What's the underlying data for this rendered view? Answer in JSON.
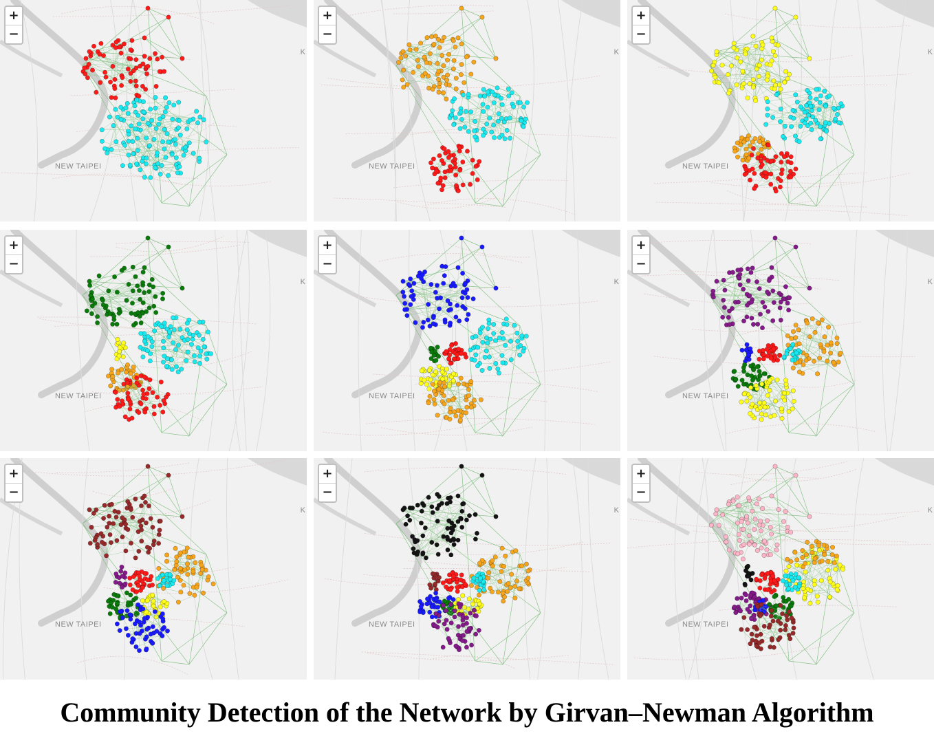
{
  "caption": "Community Detection of the Network by Girvan–Newman Algorithm",
  "zoom_controls": {
    "zoom_in": "+",
    "zoom_out": "−"
  },
  "map_labels": {
    "city": "NEW TAIPEI",
    "edge_letter": "K"
  },
  "colors": {
    "red": "#ff1a1a",
    "cyan": "#19eaf0",
    "orange": "#f7a51a",
    "yellow": "#ffff1a",
    "green": "#0a7a0a",
    "blue": "#1a1aff",
    "purple": "#851a8a",
    "brown": "#962a2a",
    "black": "#141414",
    "pink": "#ffb6c8",
    "edge": "#7fbf7f"
  },
  "panels": [
    {
      "id": "1",
      "communities": [
        {
          "region": "north",
          "color": "red"
        },
        {
          "region": "center-south",
          "color": "cyan"
        }
      ]
    },
    {
      "id": "2",
      "communities": [
        {
          "region": "north",
          "color": "orange"
        },
        {
          "region": "center-east",
          "color": "cyan"
        },
        {
          "region": "south",
          "color": "red"
        }
      ]
    },
    {
      "id": "3",
      "communities": [
        {
          "region": "north",
          "color": "yellow"
        },
        {
          "region": "center-east",
          "color": "cyan"
        },
        {
          "region": "southwest",
          "color": "orange"
        },
        {
          "region": "south",
          "color": "red"
        }
      ]
    },
    {
      "id": "4",
      "communities": [
        {
          "region": "north",
          "color": "green"
        },
        {
          "region": "center-east",
          "color": "cyan"
        },
        {
          "region": "west-strip",
          "color": "yellow"
        },
        {
          "region": "southwest",
          "color": "orange"
        },
        {
          "region": "south",
          "color": "red"
        }
      ]
    },
    {
      "id": "5",
      "communities": [
        {
          "region": "north",
          "color": "blue"
        },
        {
          "region": "east",
          "color": "cyan"
        },
        {
          "region": "west-strip",
          "color": "green"
        },
        {
          "region": "center",
          "color": "red"
        },
        {
          "region": "southwest",
          "color": "yellow"
        },
        {
          "region": "south",
          "color": "orange"
        }
      ]
    },
    {
      "id": "6",
      "communities": [
        {
          "region": "north",
          "color": "purple"
        },
        {
          "region": "east",
          "color": "orange"
        },
        {
          "region": "west-strip",
          "color": "blue"
        },
        {
          "region": "center",
          "color": "red"
        },
        {
          "region": "center-east-small",
          "color": "cyan"
        },
        {
          "region": "southwest",
          "color": "green"
        },
        {
          "region": "south",
          "color": "yellow"
        }
      ]
    },
    {
      "id": "7",
      "communities": [
        {
          "region": "north",
          "color": "brown"
        },
        {
          "region": "east",
          "color": "orange"
        },
        {
          "region": "west-strip",
          "color": "purple"
        },
        {
          "region": "center",
          "color": "red"
        },
        {
          "region": "center-east-small",
          "color": "cyan"
        },
        {
          "region": "southwest",
          "color": "green"
        },
        {
          "region": "south-center",
          "color": "yellow"
        },
        {
          "region": "south",
          "color": "blue"
        }
      ]
    },
    {
      "id": "8",
      "communities": [
        {
          "region": "north",
          "color": "black"
        },
        {
          "region": "east",
          "color": "orange"
        },
        {
          "region": "west-strip",
          "color": "brown"
        },
        {
          "region": "center",
          "color": "red"
        },
        {
          "region": "center-east-small",
          "color": "cyan"
        },
        {
          "region": "southwest",
          "color": "blue"
        },
        {
          "region": "south-west-small",
          "color": "green"
        },
        {
          "region": "south-center",
          "color": "yellow"
        },
        {
          "region": "south",
          "color": "purple"
        }
      ]
    },
    {
      "id": "9",
      "communities": [
        {
          "region": "north",
          "color": "pink"
        },
        {
          "region": "east",
          "color": "yellow"
        },
        {
          "region": "east-upper",
          "color": "orange"
        },
        {
          "region": "west-strip",
          "color": "black"
        },
        {
          "region": "center",
          "color": "red"
        },
        {
          "region": "center-east-small",
          "color": "cyan"
        },
        {
          "region": "southwest",
          "color": "purple"
        },
        {
          "region": "south-west-small",
          "color": "blue"
        },
        {
          "region": "south-center",
          "color": "green"
        },
        {
          "region": "south",
          "color": "brown"
        }
      ]
    }
  ]
}
